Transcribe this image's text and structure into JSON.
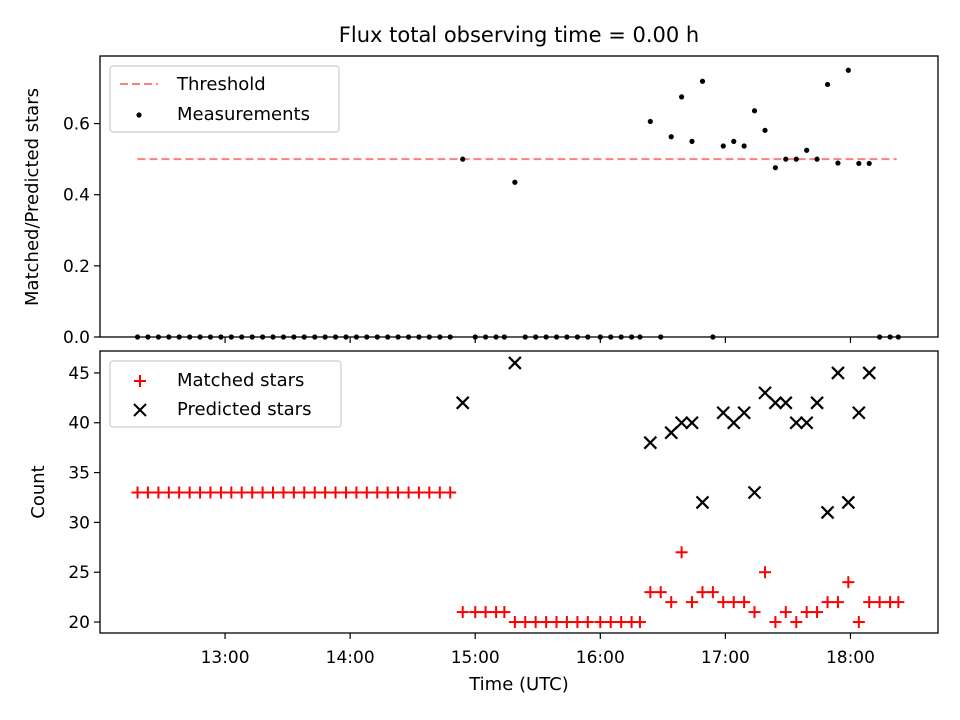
{
  "chart_data": [
    {
      "type": "scatter",
      "title": "Flux total observing time = 0.00 h",
      "xlabel": "",
      "ylabel": "Matched/Predicted stars",
      "xlim": [
        12.0,
        18.7
      ],
      "ylim": [
        0.0,
        0.79
      ],
      "yticks": [
        0.0,
        0.2,
        0.4,
        0.6
      ],
      "ytick_labels": [
        "0.0",
        "0.2",
        "0.4",
        "0.6"
      ],
      "legend": {
        "position": "top-left",
        "entries": [
          "Threshold",
          "Measurements"
        ]
      },
      "threshold": {
        "name": "Threshold",
        "value": 0.5,
        "x_start": 12.3,
        "x_end": 18.37,
        "color": "#ff7f7f"
      },
      "series": [
        {
          "name": "Measurements",
          "color": "#000000",
          "points": [
            [
              12.3,
              0
            ],
            [
              12.383,
              0
            ],
            [
              12.467,
              0
            ],
            [
              12.55,
              0
            ],
            [
              12.633,
              0
            ],
            [
              12.717,
              0
            ],
            [
              12.8,
              0
            ],
            [
              12.883,
              0
            ],
            [
              12.967,
              0
            ],
            [
              13.05,
              0
            ],
            [
              13.133,
              0
            ],
            [
              13.217,
              0
            ],
            [
              13.3,
              0
            ],
            [
              13.383,
              0
            ],
            [
              13.467,
              0
            ],
            [
              13.55,
              0
            ],
            [
              13.633,
              0
            ],
            [
              13.717,
              0
            ],
            [
              13.8,
              0
            ],
            [
              13.883,
              0
            ],
            [
              13.967,
              0
            ],
            [
              14.05,
              0
            ],
            [
              14.133,
              0
            ],
            [
              14.217,
              0
            ],
            [
              14.3,
              0
            ],
            [
              14.383,
              0
            ],
            [
              14.467,
              0
            ],
            [
              14.55,
              0
            ],
            [
              14.633,
              0
            ],
            [
              14.717,
              0
            ],
            [
              14.8,
              0
            ],
            [
              14.9,
              0.5
            ],
            [
              15.0,
              0
            ],
            [
              15.083,
              0
            ],
            [
              15.167,
              0
            ],
            [
              15.233,
              0
            ],
            [
              15.317,
              0.435
            ],
            [
              15.4,
              0
            ],
            [
              15.483,
              0
            ],
            [
              15.567,
              0
            ],
            [
              15.65,
              0
            ],
            [
              15.733,
              0
            ],
            [
              15.817,
              0
            ],
            [
              15.9,
              0
            ],
            [
              16.0,
              0
            ],
            [
              16.083,
              0
            ],
            [
              16.167,
              0
            ],
            [
              16.25,
              0
            ],
            [
              16.317,
              0
            ],
            [
              16.4,
              0.606
            ],
            [
              16.483,
              0
            ],
            [
              16.567,
              0.563
            ],
            [
              16.65,
              0.675
            ],
            [
              16.733,
              0.55
            ],
            [
              16.817,
              0.719
            ],
            [
              16.9,
              0
            ],
            [
              16.983,
              0.537
            ],
            [
              17.067,
              0.55
            ],
            [
              17.15,
              0.537
            ],
            [
              17.233,
              0.636
            ],
            [
              17.317,
              0.581
            ],
            [
              17.4,
              0.476
            ],
            [
              17.483,
              0.5
            ],
            [
              17.567,
              0.5
            ],
            [
              17.65,
              0.525
            ],
            [
              17.733,
              0.5
            ],
            [
              17.817,
              0.71
            ],
            [
              17.9,
              0.489
            ],
            [
              17.983,
              0.75
            ],
            [
              18.067,
              0.488
            ],
            [
              18.15,
              0.488
            ],
            [
              18.233,
              0
            ],
            [
              18.317,
              0
            ],
            [
              18.383,
              0
            ]
          ]
        }
      ]
    },
    {
      "type": "scatter",
      "title": "",
      "xlabel": "Time (UTC)",
      "ylabel": "Count",
      "xlim": [
        12.0,
        18.7
      ],
      "ylim": [
        18.9,
        47.2
      ],
      "yticks": [
        20,
        25,
        30,
        35,
        40,
        45
      ],
      "ytick_labels": [
        "20",
        "25",
        "30",
        "35",
        "40",
        "45"
      ],
      "xticks": [
        13,
        14,
        15,
        16,
        17,
        18
      ],
      "xtick_labels": [
        "13:00",
        "14:00",
        "15:00",
        "16:00",
        "17:00",
        "18:00"
      ],
      "legend": {
        "position": "top-left",
        "entries": [
          "Matched stars",
          "Predicted stars"
        ]
      },
      "series": [
        {
          "name": "Matched stars",
          "color": "#ff0000",
          "marker": "plus",
          "points": [
            [
              12.3,
              33
            ],
            [
              12.383,
              33
            ],
            [
              12.467,
              33
            ],
            [
              12.55,
              33
            ],
            [
              12.633,
              33
            ],
            [
              12.717,
              33
            ],
            [
              12.8,
              33
            ],
            [
              12.883,
              33
            ],
            [
              12.967,
              33
            ],
            [
              13.05,
              33
            ],
            [
              13.133,
              33
            ],
            [
              13.217,
              33
            ],
            [
              13.3,
              33
            ],
            [
              13.383,
              33
            ],
            [
              13.467,
              33
            ],
            [
              13.55,
              33
            ],
            [
              13.633,
              33
            ],
            [
              13.717,
              33
            ],
            [
              13.8,
              33
            ],
            [
              13.883,
              33
            ],
            [
              13.967,
              33
            ],
            [
              14.05,
              33
            ],
            [
              14.133,
              33
            ],
            [
              14.217,
              33
            ],
            [
              14.3,
              33
            ],
            [
              14.383,
              33
            ],
            [
              14.467,
              33
            ],
            [
              14.55,
              33
            ],
            [
              14.633,
              33
            ],
            [
              14.717,
              33
            ],
            [
              14.8,
              33
            ],
            [
              14.9,
              21
            ],
            [
              15.0,
              21
            ],
            [
              15.083,
              21
            ],
            [
              15.167,
              21
            ],
            [
              15.233,
              21
            ],
            [
              15.317,
              20
            ],
            [
              15.4,
              20
            ],
            [
              15.483,
              20
            ],
            [
              15.567,
              20
            ],
            [
              15.65,
              20
            ],
            [
              15.733,
              20
            ],
            [
              15.817,
              20
            ],
            [
              15.9,
              20
            ],
            [
              16.0,
              20
            ],
            [
              16.083,
              20
            ],
            [
              16.167,
              20
            ],
            [
              16.25,
              20
            ],
            [
              16.317,
              20
            ],
            [
              16.4,
              23
            ],
            [
              16.483,
              23
            ],
            [
              16.567,
              22
            ],
            [
              16.65,
              27
            ],
            [
              16.733,
              22
            ],
            [
              16.817,
              23
            ],
            [
              16.9,
              23
            ],
            [
              16.983,
              22
            ],
            [
              17.067,
              22
            ],
            [
              17.15,
              22
            ],
            [
              17.233,
              21
            ],
            [
              17.317,
              25
            ],
            [
              17.4,
              20
            ],
            [
              17.483,
              21
            ],
            [
              17.567,
              20
            ],
            [
              17.65,
              21
            ],
            [
              17.733,
              21
            ],
            [
              17.817,
              22
            ],
            [
              17.9,
              22
            ],
            [
              17.983,
              24
            ],
            [
              18.067,
              20
            ],
            [
              18.15,
              22
            ],
            [
              18.233,
              22
            ],
            [
              18.317,
              22
            ],
            [
              18.383,
              22
            ]
          ]
        },
        {
          "name": "Predicted stars",
          "color": "#000000",
          "marker": "x",
          "points": [
            [
              14.9,
              42
            ],
            [
              15.317,
              46
            ],
            [
              16.4,
              38
            ],
            [
              16.567,
              39
            ],
            [
              16.65,
              40
            ],
            [
              16.733,
              40
            ],
            [
              16.817,
              32
            ],
            [
              16.983,
              41
            ],
            [
              17.067,
              40
            ],
            [
              17.15,
              41
            ],
            [
              17.233,
              33
            ],
            [
              17.317,
              43
            ],
            [
              17.4,
              42
            ],
            [
              17.483,
              42
            ],
            [
              17.567,
              40
            ],
            [
              17.65,
              40
            ],
            [
              17.733,
              42
            ],
            [
              17.817,
              31
            ],
            [
              17.9,
              45
            ],
            [
              17.983,
              32
            ],
            [
              18.067,
              41
            ],
            [
              18.15,
              45
            ]
          ]
        }
      ]
    }
  ]
}
